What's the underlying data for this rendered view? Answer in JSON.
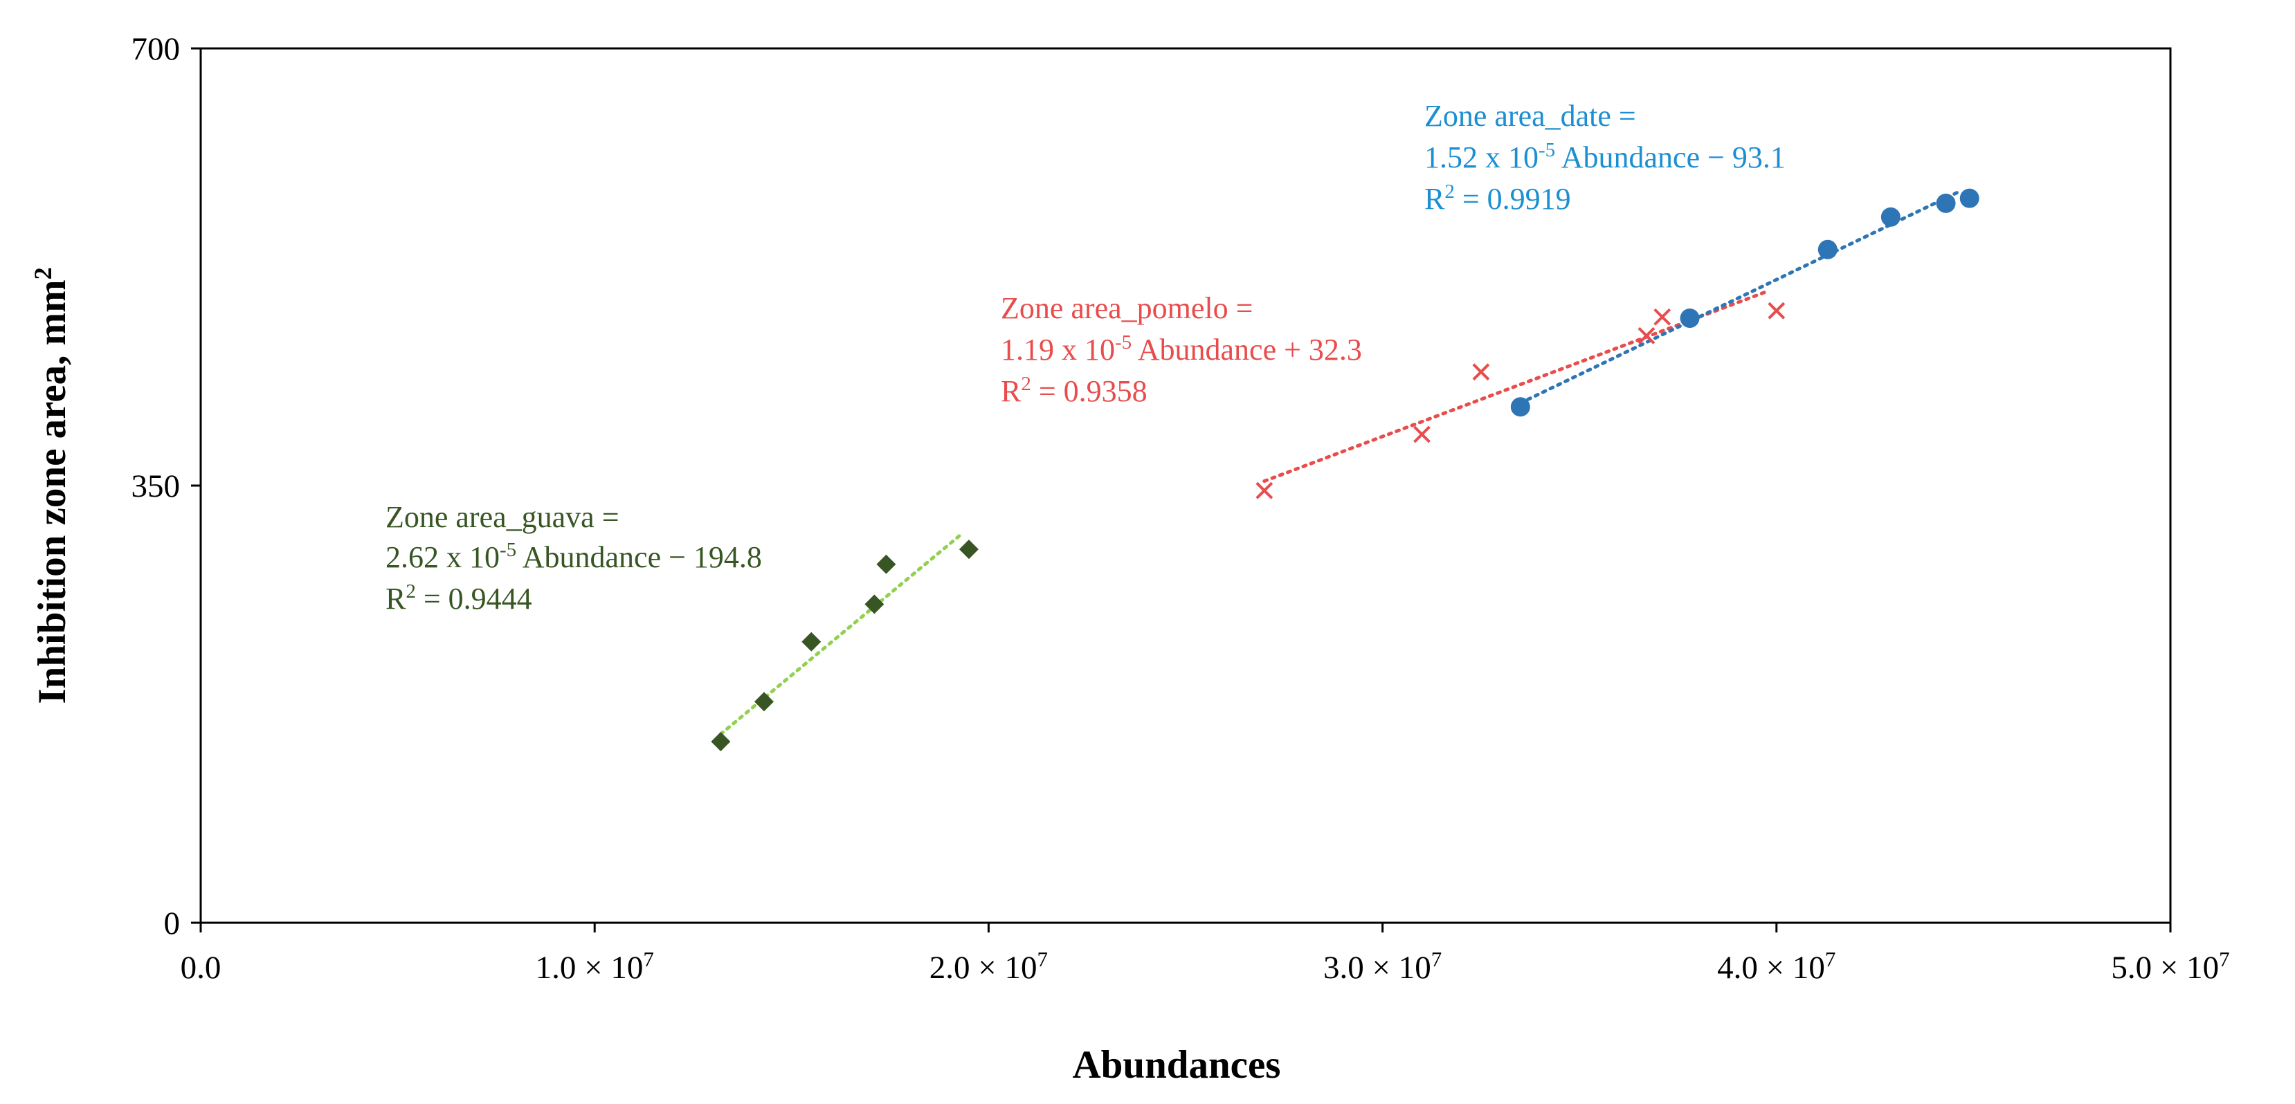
{
  "chart_data": {
    "type": "scatter",
    "title": "",
    "xlabel": "Abundances",
    "ylabel": "Inhibition zone area, mm²",
    "ylabel_main": "Inhibition zone area, mm",
    "ylabel_sup": "2",
    "xlim": [
      0,
      50000000
    ],
    "ylim": [
      0,
      700
    ],
    "x_ticks": [
      {
        "value": 0,
        "mantissa": "0.0",
        "exp": ""
      },
      {
        "value": 10000000,
        "mantissa": "1.0 × 10",
        "exp": "7"
      },
      {
        "value": 20000000,
        "mantissa": "2.0 × 10",
        "exp": "7"
      },
      {
        "value": 30000000,
        "mantissa": "3.0 × 10",
        "exp": "7"
      },
      {
        "value": 40000000,
        "mantissa": "4.0 × 10",
        "exp": "7"
      },
      {
        "value": 50000000,
        "mantissa": "5.0 × 10",
        "exp": "7"
      }
    ],
    "y_ticks": [
      {
        "value": 0,
        "label": "0"
      },
      {
        "value": 350,
        "label": "350"
      },
      {
        "value": 700,
        "label": "700"
      }
    ],
    "grid": false,
    "series": [
      {
        "key": "guava",
        "marker": "diamond",
        "color": "#375623",
        "trend_color": "#92D050",
        "x": [
          13200000,
          14300000,
          15500000,
          17100000,
          17400000,
          19500000
        ],
        "y": [
          145,
          177,
          225,
          255,
          287,
          299
        ],
        "trendline": {
          "slope": 2.62e-05,
          "intercept": -194.8,
          "x_range": [
            13200000,
            19300000
          ]
        },
        "equation": {
          "line1": "Zone area_guava =",
          "l2_a": "2.62 x 10",
          "l2_exp": "-5",
          "l2_b": " Abundance  − 194.8",
          "l3_a": "R",
          "l3_exp": "2",
          "l3_b": " = 0.9444"
        }
      },
      {
        "key": "pomelo",
        "marker": "x",
        "color": "#E84C4C",
        "trend_color": "#E84C4C",
        "x": [
          27000000,
          31000000,
          32500000,
          36700000,
          37100000,
          40000000
        ],
        "y": [
          346,
          391,
          441,
          470,
          485,
          490
        ],
        "trendline": {
          "slope": 1.19e-05,
          "intercept": 32.3,
          "x_range": [
            27000000,
            39800000
          ]
        },
        "equation": {
          "line1": "Zone area_pomelo =",
          "l2_a": "1.19 x 10",
          "l2_exp": "-5",
          "l2_b": " Abundance  + 32.3",
          "l3_a": "R",
          "l3_exp": "2",
          "l3_b": " = 0.9358"
        }
      },
      {
        "key": "date",
        "marker": "circle",
        "color": "#2E75B6",
        "trend_color": "#2E75B6",
        "x": [
          33500000,
          37800000,
          41300000,
          42900000,
          44300000,
          44900000
        ],
        "y": [
          413,
          484,
          539,
          565,
          576,
          580
        ],
        "trendline": {
          "slope": 1.52e-05,
          "intercept": -93.1,
          "x_range": [
            33500000,
            44700000
          ]
        },
        "equation": {
          "line1": "Zone area_date =",
          "l2_a": "1.52 x 10",
          "l2_exp": "-5",
          "l2_b": " Abundance  − 93.1",
          "l3_a": "R",
          "l3_exp": "2",
          "l3_b": " = 0.9919"
        }
      }
    ]
  }
}
